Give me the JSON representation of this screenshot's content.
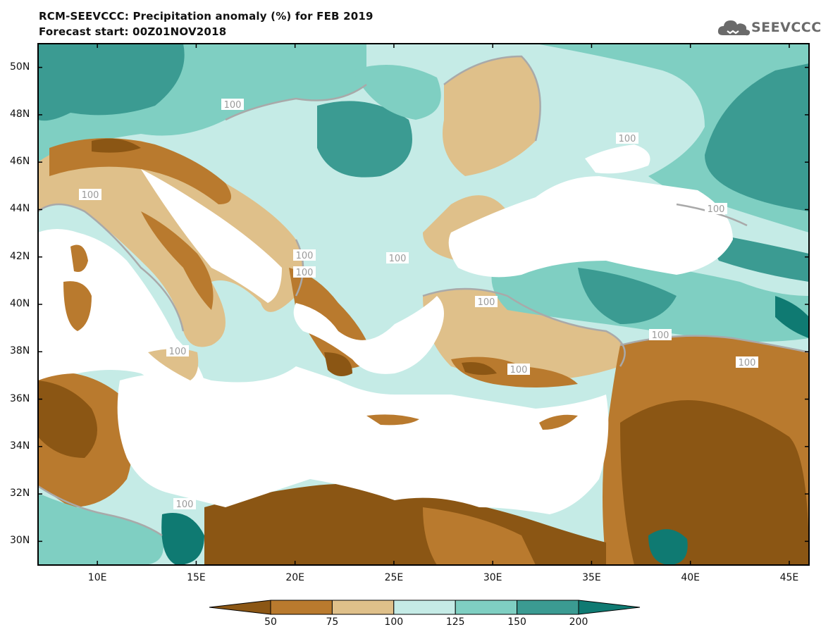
{
  "header": {
    "title": "RCM-SEEVCCC: Precipitation anomaly (%) for FEB 2019",
    "subtitle": "Forecast start: 00Z01NOV2018",
    "logo_text": "SEEVCCC"
  },
  "map": {
    "lon_range": [
      7,
      46
    ],
    "lat_range": [
      29,
      51
    ],
    "lat_ticks": [
      "50N",
      "48N",
      "46N",
      "44N",
      "42N",
      "40N",
      "38N",
      "36N",
      "34N",
      "32N",
      "30N"
    ],
    "lon_ticks": [
      "10E",
      "15E",
      "20E",
      "25E",
      "30E",
      "35E",
      "40E",
      "45E"
    ],
    "contour_label": "100"
  },
  "colorbar": {
    "labels": [
      "50",
      "75",
      "100",
      "125",
      "150",
      "200"
    ],
    "colors": [
      "#8b5614",
      "#b97a2e",
      "#dfc08a",
      "#c5ebe6",
      "#7fcfc2",
      "#3b9b92",
      "#0f7a72"
    ]
  },
  "colors": {
    "land_base": "#c5ebe6",
    "sea": "#ffffff",
    "dry_strong": "#8b5614",
    "dry": "#b97a2e",
    "dry_light": "#dfc08a",
    "wet_light": "#c5ebe6",
    "wet": "#7fcfc2",
    "wet_strong": "#3b9b92",
    "wet_extreme": "#0f7a72"
  }
}
